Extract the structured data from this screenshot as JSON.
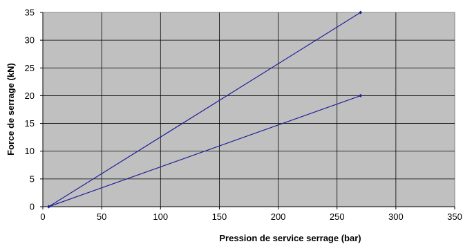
{
  "chart_data": {
    "type": "line",
    "title": "",
    "xlabel": "Pression de service serrage (bar)",
    "ylabel": "Force de serrage  (kN)",
    "xlim": [
      0,
      350
    ],
    "ylim": [
      0,
      35
    ],
    "x_ticks": [
      "0",
      "50",
      "100",
      "150",
      "200",
      "250",
      "300",
      "350"
    ],
    "y_ticks": [
      "0",
      "5",
      "10",
      "15",
      "20",
      "25",
      "30",
      "35"
    ],
    "grid": true,
    "legend": "none",
    "plot_background": "#c0c0c0",
    "series": [
      {
        "color": "#1f1f99",
        "x": [
          5,
          270
        ],
        "y": [
          0,
          35
        ]
      },
      {
        "color": "#1f1f99",
        "x": [
          5,
          270
        ],
        "y": [
          0,
          20
        ]
      }
    ]
  }
}
